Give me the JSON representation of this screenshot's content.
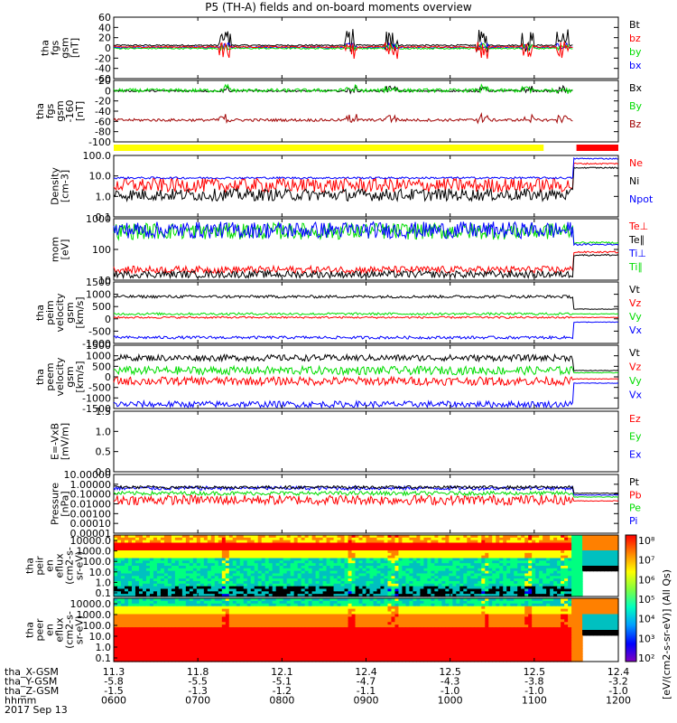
{
  "title": "P5 (TH-A) fields and on-board moments overview",
  "colors": {
    "black": "#000000",
    "red": "#ff0000",
    "green": "#00dd00",
    "blue": "#0000ff",
    "darkred": "#a00000",
    "yellow": "#ffff00",
    "barred": "#ff0000"
  },
  "chart_data": {
    "type": "line",
    "x_ticks": [
      "0600",
      "0700",
      "0800",
      "0900",
      "1000",
      "1100",
      "1200"
    ],
    "x_range_hhmm": [
      "0600",
      "1200"
    ],
    "date": "2017 Sep 13",
    "ephemeris": {
      "rows": [
        {
          "label": "tha_X-GSM",
          "values": [
            "11.3",
            "11.8",
            "12.1",
            "12.4",
            "12.5",
            "12.5",
            "12.4"
          ]
        },
        {
          "label": "tha_Y-GSM",
          "values": [
            "-5.8",
            "-5.5",
            "-5.1",
            "-4.7",
            "-4.3",
            "-3.8",
            "-3.2"
          ]
        },
        {
          "label": "tha_Z-GSM",
          "values": [
            "-1.5",
            "-1.3",
            "-1.2",
            "-1.1",
            "-1.0",
            "-1.0",
            "-1.0"
          ]
        },
        {
          "label": "hhmm",
          "values": [
            "0600",
            "0700",
            "0800",
            "0900",
            "1000",
            "1100",
            "1200"
          ]
        }
      ]
    },
    "panels": [
      {
        "id": "fgs",
        "ylabel": [
          "tha",
          "fgs",
          "gsm",
          "[nT]"
        ],
        "yticks": [
          "60",
          "40",
          "20",
          "0",
          "-20",
          "-40",
          "-60"
        ],
        "ylim": [
          -60,
          60
        ],
        "legend": [
          {
            "name": "Bt",
            "color": "#000000"
          },
          {
            "name": "bz",
            "color": "#ff0000"
          },
          {
            "name": "by",
            "color": "#00dd00"
          },
          {
            "name": "bx",
            "color": "#0000ff"
          }
        ],
        "series": [
          {
            "name": "Bt",
            "baseline": 5,
            "noise": 1.5,
            "spike": 45
          },
          {
            "name": "bx",
            "baseline": 1,
            "noise": 1.5,
            "spike": 12
          },
          {
            "name": "by",
            "baseline": -1,
            "noise": 1.5,
            "spike": 12
          },
          {
            "name": "bz",
            "baseline": 2,
            "noise": 1.5,
            "spike": -35
          }
        ]
      },
      {
        "id": "fgs2",
        "ylabel": [
          "tha",
          "fgs",
          "gsm",
          "-160",
          "[nT]"
        ],
        "yticks": [
          "20",
          "0",
          "-20",
          "-40",
          "-60",
          "-80",
          "-100"
        ],
        "ylim": [
          -110,
          25
        ],
        "legend": [
          {
            "name": "Bx",
            "color": "#000000"
          },
          {
            "name": "By",
            "color": "#00dd00"
          },
          {
            "name": "Bz",
            "color": "#a00000"
          }
        ],
        "series": [
          {
            "name": "Bx",
            "baseline": 2,
            "noise": 2,
            "spike": 14
          },
          {
            "name": "By",
            "baseline": 3,
            "noise": 4,
            "spike": 16
          },
          {
            "name": "Bz",
            "baseline": -62,
            "noise": 3,
            "spike": 18
          }
        ]
      },
      {
        "id": "density",
        "ylabel": [
          "Density",
          "[cm-3]"
        ],
        "yticks": [
          "100.0",
          "10.0",
          "1.0",
          "0.1"
        ],
        "log": true,
        "ylim": [
          0.1,
          100
        ],
        "legend": [
          {
            "name": "Ne",
            "color": "#ff0000"
          },
          {
            "name": "Ni",
            "color": "#000000"
          },
          {
            "name": "Npot",
            "color": "#0000ff"
          }
        ],
        "series": [
          {
            "name": "Ne",
            "baseline": 3.5,
            "noise": 0.35,
            "end": 40
          },
          {
            "name": "Ni",
            "baseline": 1.2,
            "noise": 0.3,
            "end": 25
          },
          {
            "name": "Npot",
            "baseline": 8,
            "noise": 0.05,
            "end": 70
          }
        ]
      },
      {
        "id": "temp",
        "ylabel": [
          "mom",
          "[eV]"
        ],
        "yticks": [
          "1000",
          "100",
          "10"
        ],
        "log": true,
        "ylim": [
          8,
          3000
        ],
        "legend": [
          {
            "name": "Te⊥",
            "color": "#ff0000"
          },
          {
            "name": "Te∥",
            "color": "#000000"
          },
          {
            "name": "Ti⊥",
            "color": "#0000ff"
          },
          {
            "name": "Ti∥",
            "color": "#00dd00"
          }
        ],
        "series": [
          {
            "name": "Ti∥",
            "baseline": 900,
            "noise": 0.35,
            "end": 300
          },
          {
            "name": "Ti⊥",
            "baseline": 1000,
            "noise": 0.35,
            "end": 250
          },
          {
            "name": "Te⊥",
            "baseline": 22,
            "noise": 0.15,
            "end": 120
          },
          {
            "name": "Te∥",
            "baseline": 14,
            "noise": 0.15,
            "end": 90
          }
        ]
      },
      {
        "id": "peim",
        "ylabel": [
          "tha",
          "peim",
          "velocity",
          "gsm",
          "[km/s]"
        ],
        "yticks": [
          "1500",
          "1000",
          "500",
          "0",
          "-500",
          "-1000"
        ],
        "ylim": [
          -1100,
          1500
        ],
        "legend": [
          {
            "name": "Vt",
            "color": "#000000"
          },
          {
            "name": "Vz",
            "color": "#ff0000"
          },
          {
            "name": "Vy",
            "color": "#00dd00"
          },
          {
            "name": "Vx",
            "color": "#0000ff"
          }
        ],
        "series": [
          {
            "name": "Vt",
            "baseline": 880,
            "noise": 60,
            "end": 350
          },
          {
            "name": "Vy",
            "baseline": 150,
            "noise": 50,
            "end": 150
          },
          {
            "name": "Vz",
            "baseline": 0,
            "noise": 40,
            "end": 0
          },
          {
            "name": "Vx",
            "baseline": -850,
            "noise": 60,
            "end": -200
          }
        ]
      },
      {
        "id": "peem",
        "ylabel": [
          "tha",
          "peem",
          "velocity",
          "gsm",
          "[km/s]"
        ],
        "yticks": [
          "1500",
          "1000",
          "500",
          "0",
          "-500",
          "-1000",
          "-1500"
        ],
        "ylim": [
          -1500,
          1500
        ],
        "legend": [
          {
            "name": "Vt",
            "color": "#000000"
          },
          {
            "name": "Vz",
            "color": "#ff0000"
          },
          {
            "name": "Vy",
            "color": "#00dd00"
          },
          {
            "name": "Vx",
            "color": "#0000ff"
          }
        ],
        "series": [
          {
            "name": "Vy",
            "baseline": 300,
            "noise": 200,
            "end": 200
          },
          {
            "name": "Vt",
            "baseline": 900,
            "noise": 150,
            "end": 300
          },
          {
            "name": "Vz",
            "baseline": -200,
            "noise": 200,
            "end": -100
          },
          {
            "name": "Vx",
            "baseline": -1300,
            "noise": 150,
            "end": -300
          }
        ]
      },
      {
        "id": "efield",
        "ylabel": [
          "E=-VxB",
          "[mV/m]"
        ],
        "yticks": [
          "1.5",
          "1.0",
          "0.5",
          "0.0"
        ],
        "ylim": [
          0,
          1.5
        ],
        "legend": [
          {
            "name": "Ez",
            "color": "#ff0000"
          },
          {
            "name": "Ey",
            "color": "#00dd00"
          },
          {
            "name": "Ex",
            "color": "#0000ff"
          }
        ],
        "series": []
      },
      {
        "id": "pressure",
        "ylabel": [
          "Pressure",
          "[nPa]"
        ],
        "yticks": [
          "10.00000",
          "1.00000",
          "0.10000",
          "0.01000",
          "0.00100",
          "0.00010",
          "0.00001"
        ],
        "log": true,
        "ylim": [
          1e-05,
          10
        ],
        "legend": [
          {
            "name": "Pt",
            "color": "#000000"
          },
          {
            "name": "Pb",
            "color": "#ff0000"
          },
          {
            "name": "Pe",
            "color": "#00dd00"
          },
          {
            "name": "Pi",
            "color": "#0000ff"
          }
        ],
        "series": [
          {
            "name": "Pi",
            "baseline": 0.4,
            "noise": 0.2,
            "end": 0.08
          },
          {
            "name": "Pe",
            "baseline": 0.12,
            "noise": 0.2,
            "end": 0.05
          },
          {
            "name": "Pt",
            "baseline": 0.5,
            "noise": 0.15,
            "end": 0.12
          },
          {
            "name": "Pb",
            "baseline": 0.025,
            "noise": 0.5,
            "end": 0.02
          }
        ]
      }
    ],
    "spectrograms": [
      {
        "id": "peir",
        "ylabel": [
          "tha",
          "peir",
          "en",
          "eflux",
          "(cm2-s-",
          "sr-eV)"
        ],
        "yticks": [
          "10000.0",
          "1000.0",
          "100.0",
          "10.0",
          "1.0",
          "0.1"
        ]
      },
      {
        "id": "peer",
        "ylabel": [
          "tha",
          "peer",
          "en",
          "eflux",
          "(cm2-s-",
          "sr-eV)"
        ],
        "yticks": [
          "10000.0",
          "1000.0",
          "100.0",
          "10.0",
          "1.0",
          "0.1"
        ]
      }
    ],
    "colorbar": {
      "label": "[eV/(cm2-s-sr-eV)] (All Qs)",
      "ticks": [
        "10⁸",
        "10⁷",
        "10⁶",
        "10⁵",
        "10⁴",
        "10³",
        "10²"
      ]
    },
    "status_bar": {
      "colors": [
        "#ffff00",
        "#ff0000"
      ],
      "switch_hhmm": "1140"
    }
  }
}
